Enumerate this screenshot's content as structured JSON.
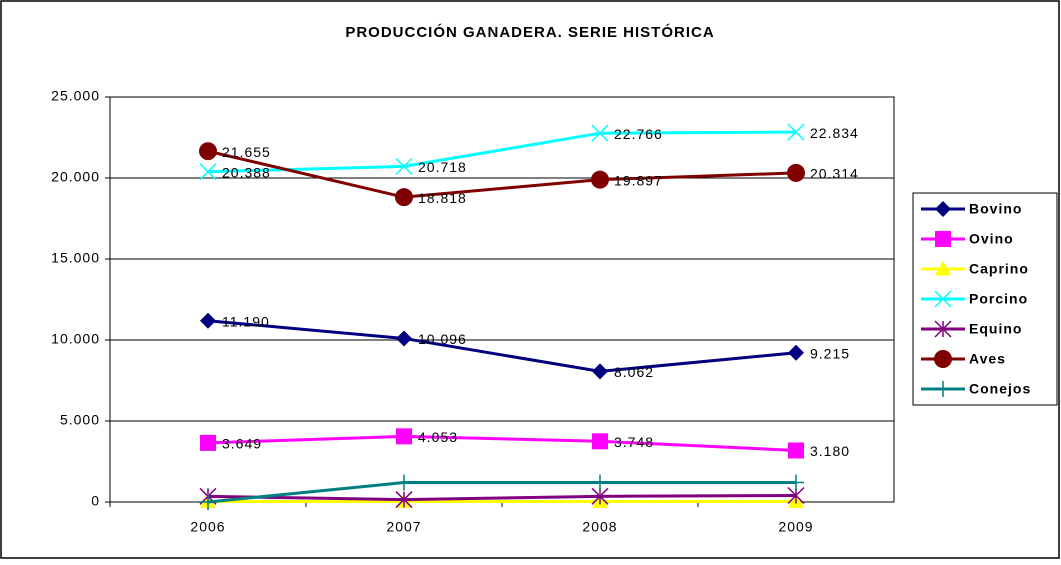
{
  "chart_data": {
    "type": "line",
    "title": "PRODUCCIÓN GANADERA. SERIE HISTÓRICA",
    "categories": [
      "2006",
      "2007",
      "2008",
      "2009"
    ],
    "ylim": [
      0,
      25000
    ],
    "yticks": [
      0,
      {
        "value": 5000,
        "label": "5.000"
      },
      {
        "value": 10000,
        "label": "10.000"
      },
      {
        "value": 15000,
        "label": "15.000"
      },
      {
        "value": 20000,
        "label": "20.000"
      },
      {
        "value": 25000,
        "label": "25.000"
      }
    ],
    "grid": true,
    "legend": "right",
    "series": [
      {
        "name": "Bovino",
        "color": "#000080",
        "marker": "diamond",
        "values": [
          11190,
          10096,
          8062,
          9215
        ],
        "value_labels": [
          "11.190",
          "10.096",
          "8.062",
          "9.215"
        ]
      },
      {
        "name": "Ovino",
        "color": "#ff00ff",
        "marker": "square",
        "values": [
          3649,
          4053,
          3748,
          3180
        ],
        "value_labels": [
          "3.649",
          "4.053",
          "3.748",
          "3.180"
        ]
      },
      {
        "name": "Caprino",
        "color": "#ffff00",
        "marker": "triangle",
        "values": [
          30,
          30,
          30,
          30
        ]
      },
      {
        "name": "Porcino",
        "color": "#00ffff",
        "marker": "x",
        "values": [
          20388,
          20718,
          22766,
          22834
        ],
        "value_labels": [
          "20.388",
          "20.718",
          "22.766",
          "22.834"
        ]
      },
      {
        "name": "Equino",
        "color": "#800080",
        "marker": "star",
        "values": [
          350,
          150,
          350,
          400
        ]
      },
      {
        "name": "Aves",
        "color": "#800000",
        "marker": "circle",
        "values": [
          21655,
          18818,
          19897,
          20314
        ],
        "value_labels": [
          "21.655",
          "18.818",
          "19.897",
          "20.314"
        ]
      },
      {
        "name": "Conejos",
        "color": "#008080",
        "marker": "plus",
        "values": [
          0,
          1200,
          1200,
          1200
        ]
      }
    ]
  }
}
